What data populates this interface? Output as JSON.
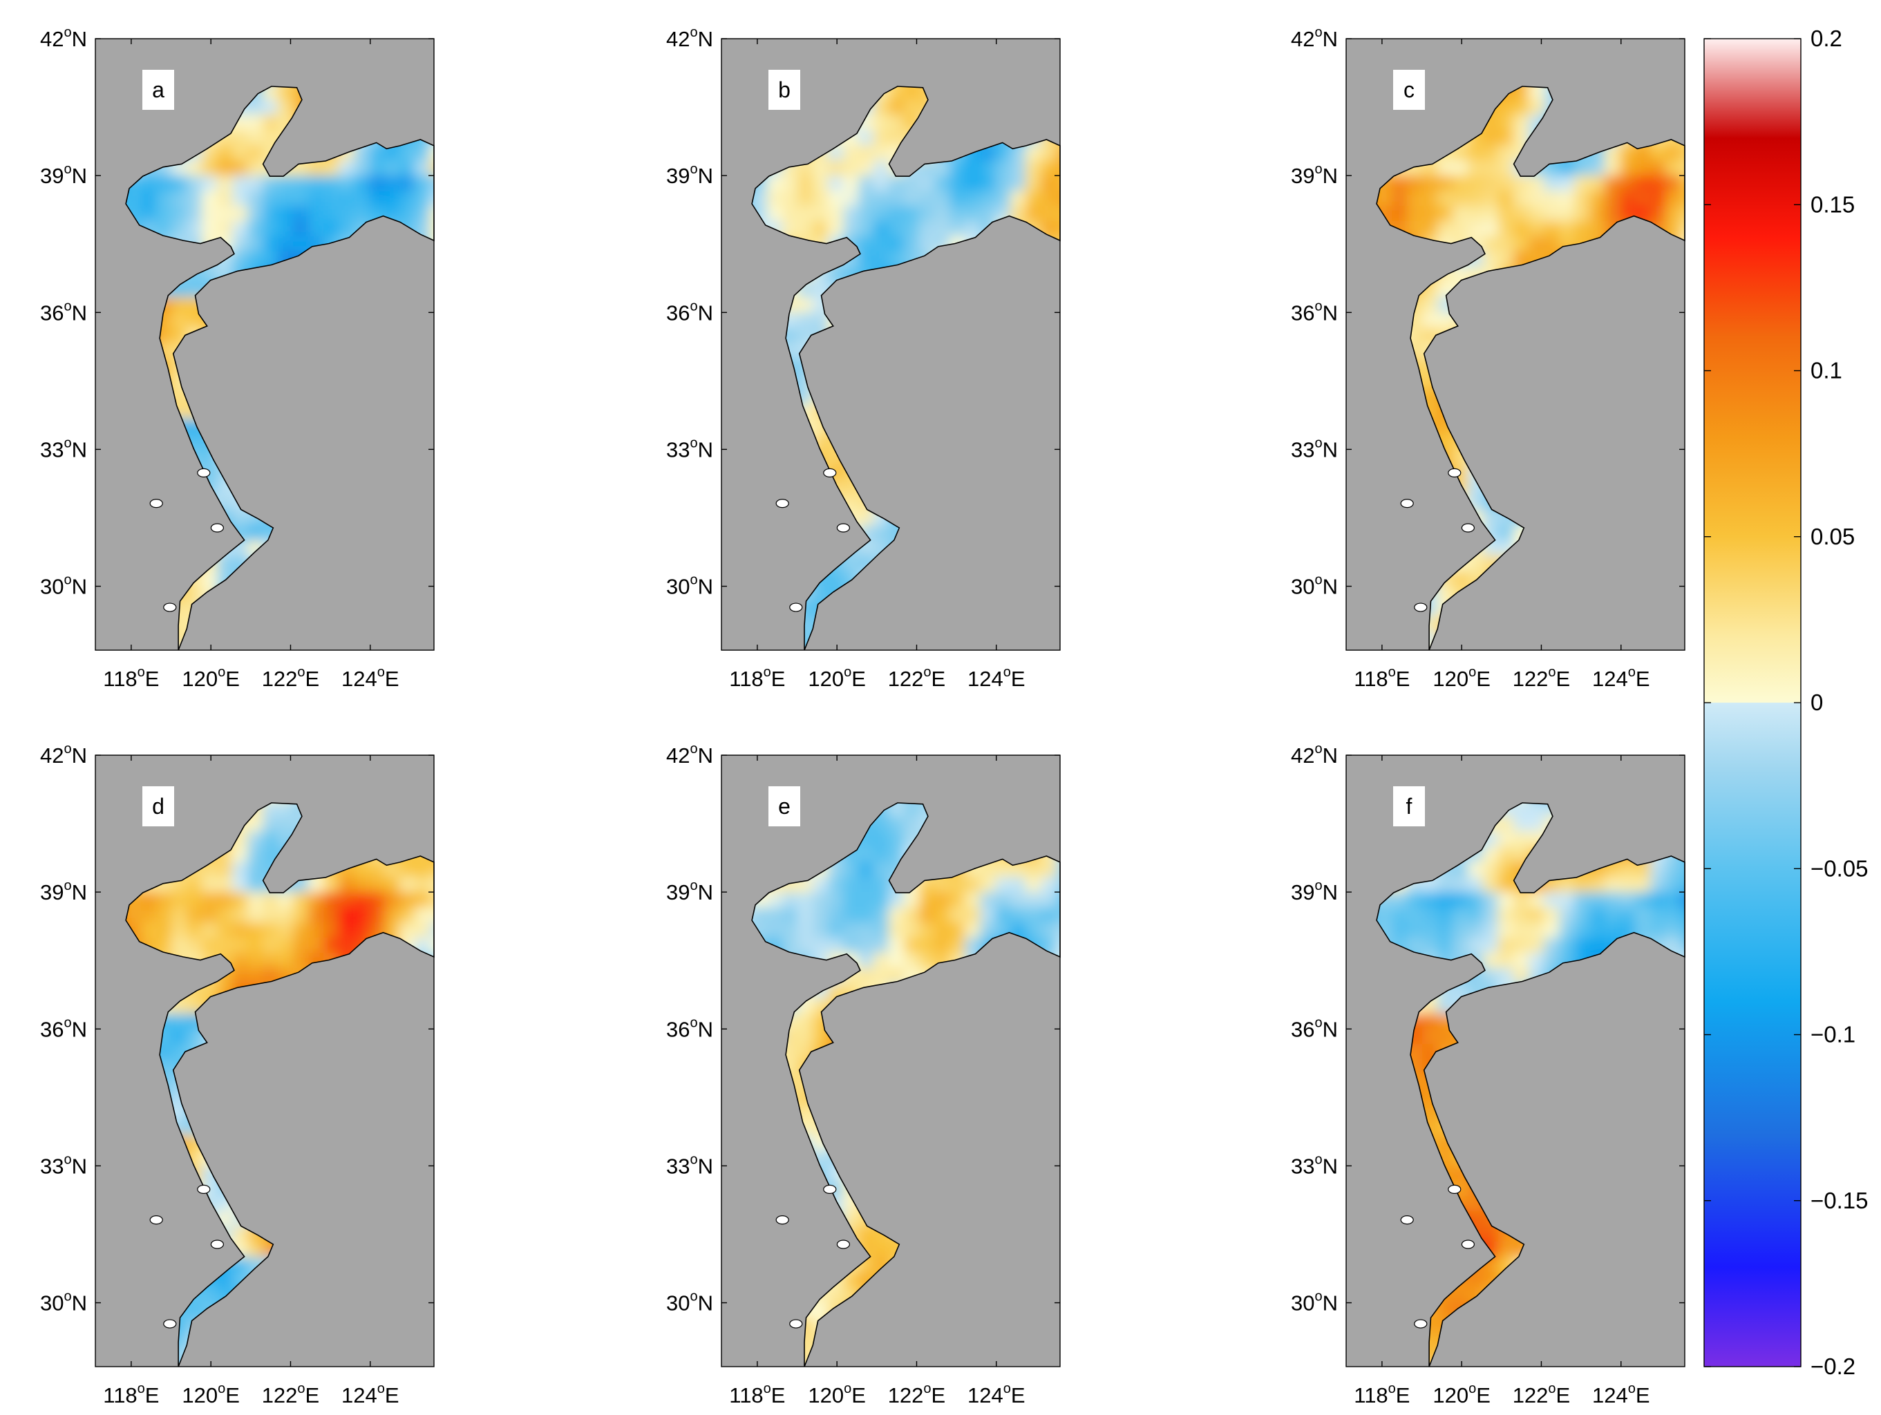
{
  "panels": [
    {
      "id": "a",
      "label": "a",
      "pattern": [
        0.01,
        -0.045,
        0.06,
        -0.035,
        0.02
      ],
      "seed": 1
    },
    {
      "id": "b",
      "label": "b",
      "pattern": [
        -0.01,
        -0.015,
        0.01,
        0.005,
        -0.005
      ],
      "seed": 2
    },
    {
      "id": "c",
      "label": "c",
      "pattern": [
        0.01,
        0.05,
        0.03,
        0.02,
        0.03
      ],
      "seed": 3
    },
    {
      "id": "d",
      "label": "d",
      "pattern": [
        0.015,
        0.06,
        -0.04,
        0.04,
        -0.06
      ],
      "seed": 4
    },
    {
      "id": "e",
      "label": "e",
      "pattern": [
        -0.005,
        -0.01,
        0.015,
        0.01,
        0.005
      ],
      "seed": 5
    },
    {
      "id": "f",
      "label": "f",
      "pattern": [
        0.02,
        -0.03,
        0.06,
        0.08,
        0.05
      ],
      "seed": 6
    }
  ],
  "axes": {
    "y_ticks": [
      {
        "value": 42,
        "deg": "42",
        "hemi": "N"
      },
      {
        "value": 39,
        "deg": "39",
        "hemi": "N"
      },
      {
        "value": 36,
        "deg": "36",
        "hemi": "N"
      },
      {
        "value": 33,
        "deg": "33",
        "hemi": "N"
      },
      {
        "value": 30,
        "deg": "30",
        "hemi": "N"
      }
    ],
    "x_ticks": [
      {
        "value": 118,
        "deg": "118",
        "hemi": "E"
      },
      {
        "value": 120,
        "deg": "120",
        "hemi": "E"
      },
      {
        "value": 122,
        "deg": "122",
        "hemi": "E"
      },
      {
        "value": 124,
        "deg": "124",
        "hemi": "E"
      }
    ],
    "degree_symbol": "o",
    "lat_range": [
      28.6,
      42
    ],
    "lon_range": [
      117.1,
      125.6
    ]
  },
  "colorbar": {
    "range": [
      -0.2,
      0.2
    ],
    "ticks": [
      {
        "value": 0.2,
        "label": "0.2"
      },
      {
        "value": 0.15,
        "label": "0.15"
      },
      {
        "value": 0.1,
        "label": "0.1"
      },
      {
        "value": 0.05,
        "label": "0.05"
      },
      {
        "value": 0,
        "label": "0"
      },
      {
        "value": -0.05,
        "label": "−0.05"
      },
      {
        "value": -0.1,
        "label": "−0.1"
      },
      {
        "value": -0.15,
        "label": "−0.15"
      },
      {
        "value": -0.2,
        "label": "−0.2"
      }
    ],
    "stops": [
      {
        "v": -0.2,
        "color": "#7a2ee6"
      },
      {
        "v": -0.17,
        "color": "#1a1aff"
      },
      {
        "v": -0.13,
        "color": "#1f6fe0"
      },
      {
        "v": -0.09,
        "color": "#10a8f0"
      },
      {
        "v": -0.05,
        "color": "#5cc3f0"
      },
      {
        "v": -0.02,
        "color": "#9fd6f0"
      },
      {
        "v": -0.0001,
        "color": "#cfeaf7"
      },
      {
        "v": 0.0001,
        "color": "#fdfbd3"
      },
      {
        "v": 0.02,
        "color": "#fceaa0"
      },
      {
        "v": 0.05,
        "color": "#f9c33a"
      },
      {
        "v": 0.08,
        "color": "#f59a18"
      },
      {
        "v": 0.11,
        "color": "#f26a0e"
      },
      {
        "v": 0.14,
        "color": "#ff1a0a"
      },
      {
        "v": 0.17,
        "color": "#c80000"
      },
      {
        "v": 0.2,
        "color": "#fff0f0"
      }
    ]
  },
  "colors": {
    "land": "#a6a6a6",
    "coast": "#000000",
    "background": "#ffffff"
  }
}
